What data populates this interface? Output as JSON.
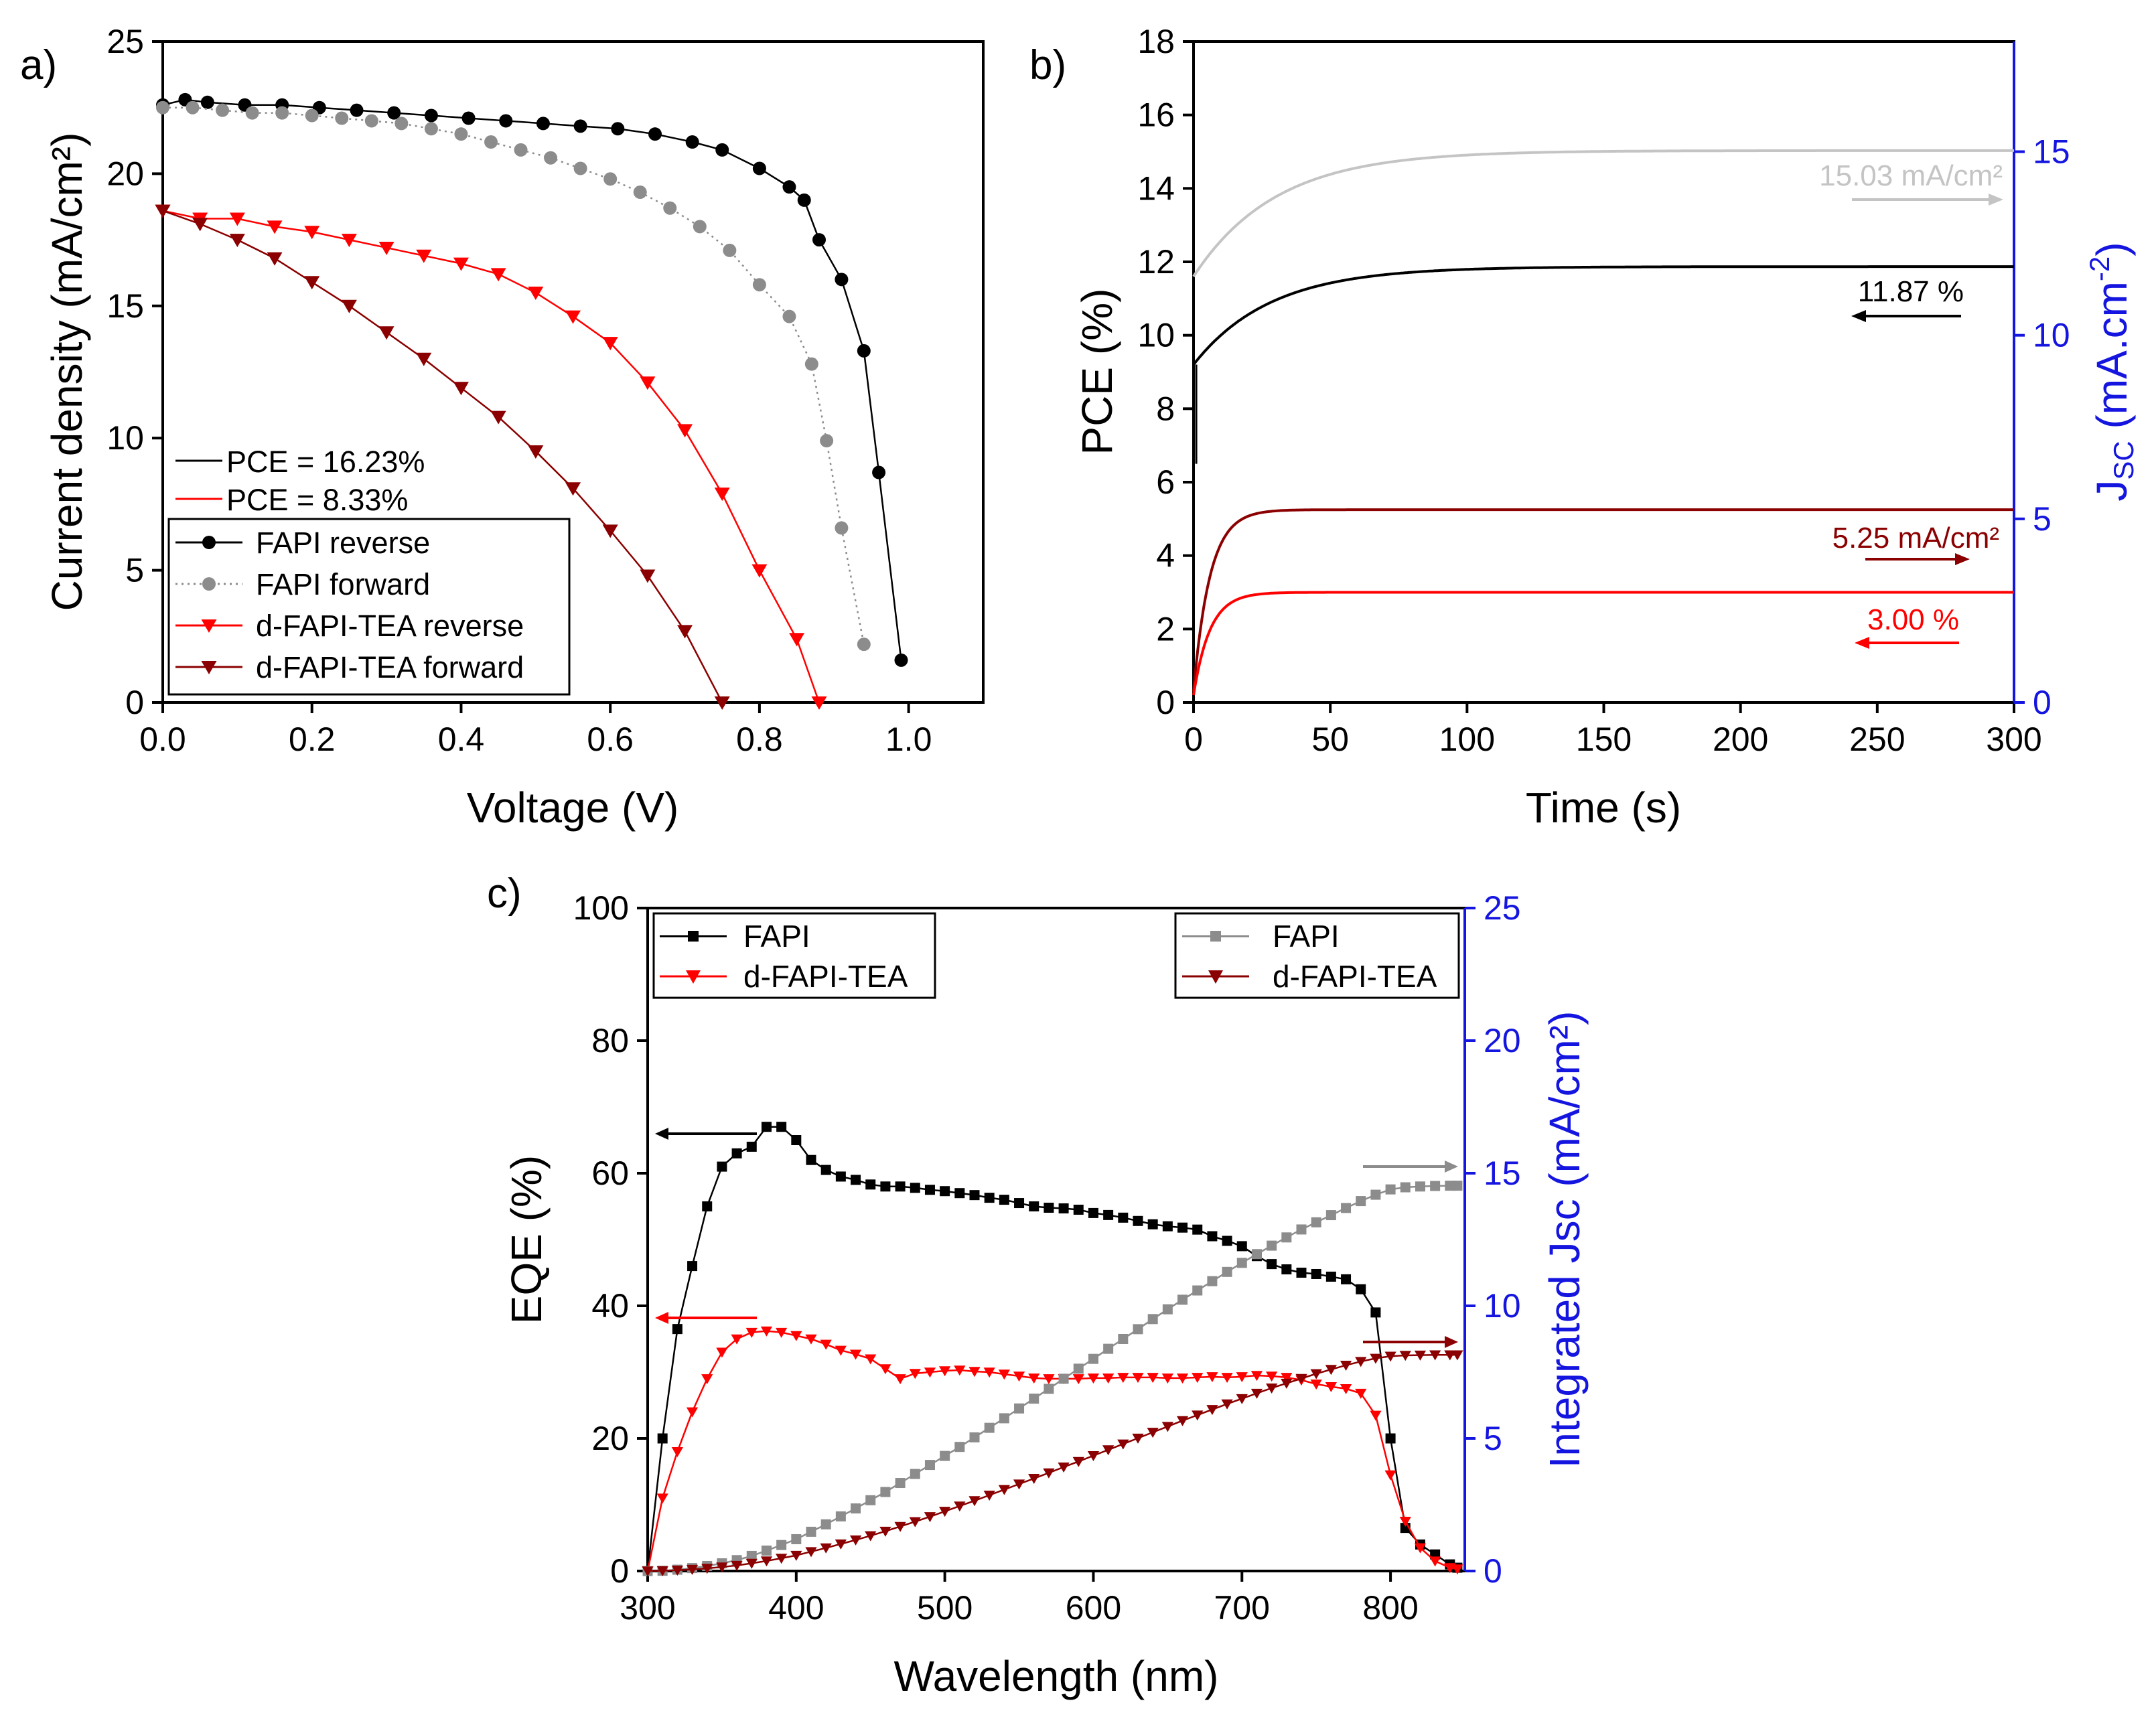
{
  "colors": {
    "black": "#000000",
    "gray": "#8c8c8c",
    "lightgray": "#c4c4c4",
    "red": "#ff0000",
    "darkred": "#8b0000",
    "blue": "#1515e0"
  },
  "chart_data": [
    {
      "id": "a",
      "panel_label": "a)",
      "type": "scatter",
      "xlabel": "Voltage (V)",
      "ylabel": "Current density (mA/cm²)",
      "xlim": [
        0,
        1.1
      ],
      "ylim": [
        0,
        25
      ],
      "xticks": [
        "0.0",
        "0.2",
        "0.4",
        "0.6",
        "0.8",
        "1.0"
      ],
      "xtick_values": [
        0,
        0.2,
        0.4,
        0.6,
        0.8,
        1.0
      ],
      "yticks": [
        "0",
        "5",
        "10",
        "15",
        "20",
        "25"
      ],
      "ytick_values": [
        0,
        5,
        10,
        15,
        20,
        25
      ],
      "pce_legend": [
        {
          "text": "PCE = 16.23%",
          "color": "black"
        },
        {
          "text": "PCE = 8.33%",
          "color": "red"
        }
      ],
      "series": [
        {
          "name": "FAPI reverse",
          "color": "black",
          "marker": "circle",
          "line": "solid",
          "x": [
            0.0,
            0.03,
            0.06,
            0.11,
            0.16,
            0.21,
            0.26,
            0.31,
            0.36,
            0.41,
            0.46,
            0.51,
            0.56,
            0.61,
            0.66,
            0.71,
            0.75,
            0.8,
            0.84,
            0.86,
            0.88,
            0.91,
            0.94,
            0.96,
            0.99
          ],
          "y": [
            22.6,
            22.8,
            22.7,
            22.6,
            22.6,
            22.5,
            22.4,
            22.3,
            22.2,
            22.1,
            22.0,
            21.9,
            21.8,
            21.7,
            21.5,
            21.2,
            20.9,
            20.2,
            19.5,
            19.0,
            17.5,
            16.0,
            13.3,
            8.7,
            1.6
          ]
        },
        {
          "name": "FAPI forward",
          "color": "gray",
          "marker": "circle",
          "line": "dotted",
          "x": [
            0.0,
            0.04,
            0.08,
            0.12,
            0.16,
            0.2,
            0.24,
            0.28,
            0.32,
            0.36,
            0.4,
            0.44,
            0.48,
            0.52,
            0.56,
            0.6,
            0.64,
            0.68,
            0.72,
            0.76,
            0.8,
            0.84,
            0.87,
            0.89,
            0.91,
            0.94
          ],
          "y": [
            22.5,
            22.5,
            22.4,
            22.3,
            22.3,
            22.2,
            22.1,
            22.0,
            21.9,
            21.7,
            21.5,
            21.2,
            20.9,
            20.6,
            20.2,
            19.8,
            19.3,
            18.7,
            18.0,
            17.1,
            15.8,
            14.6,
            12.8,
            9.9,
            6.6,
            2.2
          ]
        },
        {
          "name": "d-FAPI-TEA reverse",
          "color": "red",
          "marker": "triangle-down",
          "line": "solid",
          "x": [
            0.0,
            0.05,
            0.1,
            0.15,
            0.2,
            0.25,
            0.3,
            0.35,
            0.4,
            0.45,
            0.5,
            0.55,
            0.6,
            0.65,
            0.7,
            0.75,
            0.8,
            0.85,
            0.88
          ],
          "y": [
            18.6,
            18.3,
            18.3,
            18.0,
            17.8,
            17.5,
            17.2,
            16.9,
            16.6,
            16.2,
            15.5,
            14.6,
            13.6,
            12.1,
            10.3,
            7.9,
            5.0,
            2.4,
            0.0
          ]
        },
        {
          "name": "d-FAPI-TEA forward",
          "color": "darkred",
          "marker": "triangle-down",
          "line": "solid",
          "x": [
            0.0,
            0.05,
            0.1,
            0.15,
            0.2,
            0.25,
            0.3,
            0.35,
            0.4,
            0.45,
            0.5,
            0.55,
            0.6,
            0.65,
            0.7,
            0.75
          ],
          "y": [
            18.6,
            18.1,
            17.5,
            16.8,
            15.9,
            15.0,
            14.0,
            13.0,
            11.9,
            10.8,
            9.5,
            8.1,
            6.5,
            4.8,
            2.7,
            0.0
          ]
        }
      ]
    },
    {
      "id": "b",
      "panel_label": "b)",
      "type": "line",
      "xlabel": "Time (s)",
      "ylabel": "PCE (%)",
      "ylabel_right": "J",
      "ylabel_right_sub": "SC",
      "ylabel_right_rest": " (mA.cm",
      "ylabel_right_sup": "-2",
      "ylabel_right_end": ")",
      "xlim": [
        0,
        300
      ],
      "ylim": [
        0,
        18
      ],
      "ylim_right": [
        0,
        18
      ],
      "xticks": [
        "0",
        "50",
        "100",
        "150",
        "200",
        "250",
        "300"
      ],
      "xtick_values": [
        0,
        50,
        100,
        150,
        200,
        250,
        300
      ],
      "yticks": [
        "0",
        "2",
        "4",
        "6",
        "8",
        "10",
        "12",
        "14",
        "16",
        "18"
      ],
      "ytick_values": [
        0,
        2,
        4,
        6,
        8,
        10,
        12,
        14,
        16,
        18
      ],
      "yticks_right": [
        "0",
        "5",
        "10",
        "15"
      ],
      "ytick_values_right": [
        0,
        5,
        10,
        15
      ],
      "series": [
        {
          "name": "FAPI Jsc",
          "color": "lightgray",
          "axis": "right",
          "start": 11.6,
          "final": 15.03,
          "tau": 30
        },
        {
          "name": "FAPI PCE",
          "color": "black",
          "axis": "left",
          "start": 9.2,
          "final": 11.87,
          "tau": 28
        },
        {
          "name": "d-FAPI-TEA Jsc",
          "color": "darkred",
          "axis": "right",
          "start": 0.3,
          "final": 5.25,
          "tau": 6
        },
        {
          "name": "d-FAPI-TEA PCE",
          "color": "red",
          "axis": "left",
          "start": 0.2,
          "final": 3.0,
          "tau": 6
        }
      ],
      "annotations": [
        {
          "text": "15.03 mA/cm²",
          "color": "lightgray",
          "arrow": "right"
        },
        {
          "text": "11.87 %",
          "color": "black",
          "arrow": "left"
        },
        {
          "text": "5.25 mA/cm²",
          "color": "darkred",
          "arrow": "right"
        },
        {
          "text": "3.00 %",
          "color": "red",
          "arrow": "left"
        }
      ]
    },
    {
      "id": "c",
      "panel_label": "c)",
      "type": "scatter",
      "xlabel": "Wavelength (nm)",
      "ylabel": "EQE (%)",
      "ylabel_right": "Integrated Jsc (mA/cm²)",
      "xlim": [
        300,
        850
      ],
      "ylim": [
        0,
        100
      ],
      "ylim_right": [
        0,
        25
      ],
      "xticks": [
        "300",
        "400",
        "500",
        "600",
        "700",
        "800"
      ],
      "xtick_values": [
        300,
        400,
        500,
        600,
        700,
        800
      ],
      "yticks": [
        "0",
        "20",
        "40",
        "60",
        "80",
        "100"
      ],
      "ytick_values": [
        0,
        20,
        40,
        60,
        80,
        100
      ],
      "yticks_right": [
        "0",
        "5",
        "10",
        "15",
        "20",
        "25"
      ],
      "ytick_values_right": [
        0,
        5,
        10,
        15,
        20,
        25
      ],
      "legend_left": [
        "FAPI",
        "d-FAPI-TEA"
      ],
      "legend_right": [
        "FAPI",
        "d-FAPI-TEA"
      ],
      "series": [
        {
          "name": "FAPI EQE",
          "color": "black",
          "marker": "square",
          "axis": "left",
          "x": [
            300,
            310,
            320,
            330,
            340,
            350,
            360,
            370,
            380,
            390,
            400,
            410,
            420,
            430,
            440,
            450,
            460,
            470,
            480,
            490,
            500,
            510,
            520,
            530,
            540,
            550,
            560,
            570,
            580,
            590,
            600,
            610,
            620,
            630,
            640,
            650,
            660,
            670,
            680,
            690,
            700,
            710,
            720,
            730,
            740,
            750,
            760,
            770,
            780,
            790,
            800,
            810,
            820,
            830,
            840,
            845
          ],
          "y": [
            0,
            20,
            36.5,
            46,
            55,
            61,
            63,
            64,
            67,
            67,
            65,
            62,
            60.5,
            59.5,
            59,
            58.3,
            58,
            58,
            57.8,
            57.5,
            57.3,
            57,
            56.7,
            56.3,
            56,
            55.5,
            55,
            54.8,
            54.7,
            54.5,
            54,
            53.7,
            53.3,
            52.8,
            52.3,
            52,
            51.8,
            51.5,
            50.5,
            49.8,
            49,
            47.5,
            46.3,
            45.5,
            45,
            44.8,
            44.4,
            44,
            42.5,
            39,
            20,
            6.5,
            4,
            2.5,
            1,
            0.5
          ]
        },
        {
          "name": "d-FAPI-TEA EQE",
          "color": "red",
          "marker": "triangle-down",
          "axis": "left",
          "x": [
            300,
            310,
            320,
            330,
            340,
            350,
            360,
            370,
            380,
            390,
            400,
            410,
            420,
            430,
            440,
            450,
            460,
            470,
            480,
            490,
            500,
            510,
            520,
            530,
            540,
            550,
            560,
            570,
            580,
            590,
            600,
            610,
            620,
            630,
            640,
            650,
            660,
            670,
            680,
            690,
            700,
            710,
            720,
            730,
            740,
            750,
            760,
            770,
            780,
            790,
            800,
            810,
            820,
            830,
            840,
            845
          ],
          "y": [
            0,
            11,
            18,
            24,
            29,
            33,
            35,
            36,
            36.2,
            36,
            35.5,
            35,
            34.2,
            33.3,
            32.7,
            32,
            30.5,
            29,
            29.8,
            30,
            30.2,
            30.3,
            30.1,
            30,
            29.7,
            29.4,
            29.1,
            29,
            29,
            29,
            29.1,
            29.1,
            29.2,
            29.2,
            29.2,
            29.1,
            29.1,
            29.2,
            29.3,
            29.2,
            29.3,
            29.5,
            29.4,
            29.2,
            28.8,
            28.2,
            27.8,
            27.5,
            26.8,
            23.5,
            14.5,
            7.5,
            3.5,
            1.5,
            0.5,
            0.3
          ]
        },
        {
          "name": "FAPI Integrated Jsc",
          "color": "gray",
          "marker": "square",
          "axis": "right",
          "x": [
            300,
            310,
            320,
            330,
            340,
            350,
            360,
            370,
            380,
            390,
            400,
            410,
            420,
            430,
            440,
            450,
            460,
            470,
            480,
            490,
            500,
            510,
            520,
            530,
            540,
            550,
            560,
            570,
            580,
            590,
            600,
            610,
            620,
            630,
            640,
            650,
            660,
            670,
            680,
            690,
            700,
            710,
            720,
            730,
            740,
            750,
            760,
            770,
            780,
            790,
            800,
            810,
            820,
            830,
            840,
            845
          ],
          "y": [
            0,
            0.01,
            0.05,
            0.11,
            0.19,
            0.29,
            0.41,
            0.57,
            0.77,
            0.98,
            1.2,
            1.48,
            1.76,
            2.06,
            2.36,
            2.67,
            2.98,
            3.32,
            3.66,
            4.0,
            4.34,
            4.68,
            5.04,
            5.4,
            5.76,
            6.13,
            6.5,
            6.87,
            7.25,
            7.63,
            8.0,
            8.38,
            8.75,
            9.12,
            9.5,
            9.87,
            10.23,
            10.58,
            10.93,
            11.28,
            11.62,
            11.95,
            12.27,
            12.58,
            12.88,
            13.15,
            13.42,
            13.69,
            13.95,
            14.19,
            14.39,
            14.47,
            14.5,
            14.52,
            14.53,
            14.53
          ]
        },
        {
          "name": "d-FAPI-TEA Integrated Jsc",
          "color": "darkred",
          "marker": "triangle-down",
          "axis": "right",
          "x": [
            300,
            310,
            320,
            330,
            340,
            350,
            360,
            370,
            380,
            390,
            400,
            410,
            420,
            430,
            440,
            450,
            460,
            470,
            480,
            490,
            500,
            510,
            520,
            530,
            540,
            550,
            560,
            570,
            580,
            590,
            600,
            610,
            620,
            630,
            640,
            650,
            660,
            670,
            680,
            690,
            700,
            710,
            720,
            730,
            740,
            750,
            760,
            770,
            780,
            790,
            800,
            810,
            820,
            830,
            840,
            845
          ],
          "y": [
            0,
            0.01,
            0.03,
            0.06,
            0.1,
            0.15,
            0.21,
            0.29,
            0.38,
            0.48,
            0.59,
            0.73,
            0.87,
            1.02,
            1.17,
            1.33,
            1.5,
            1.68,
            1.86,
            2.05,
            2.25,
            2.45,
            2.65,
            2.86,
            3.07,
            3.28,
            3.49,
            3.7,
            3.92,
            4.13,
            4.35,
            4.57,
            4.79,
            5.01,
            5.23,
            5.45,
            5.67,
            5.88,
            6.09,
            6.3,
            6.5,
            6.7,
            6.9,
            7.08,
            7.26,
            7.44,
            7.6,
            7.76,
            7.9,
            8.02,
            8.1,
            8.13,
            8.14,
            8.15,
            8.15,
            8.15
          ]
        }
      ]
    }
  ]
}
